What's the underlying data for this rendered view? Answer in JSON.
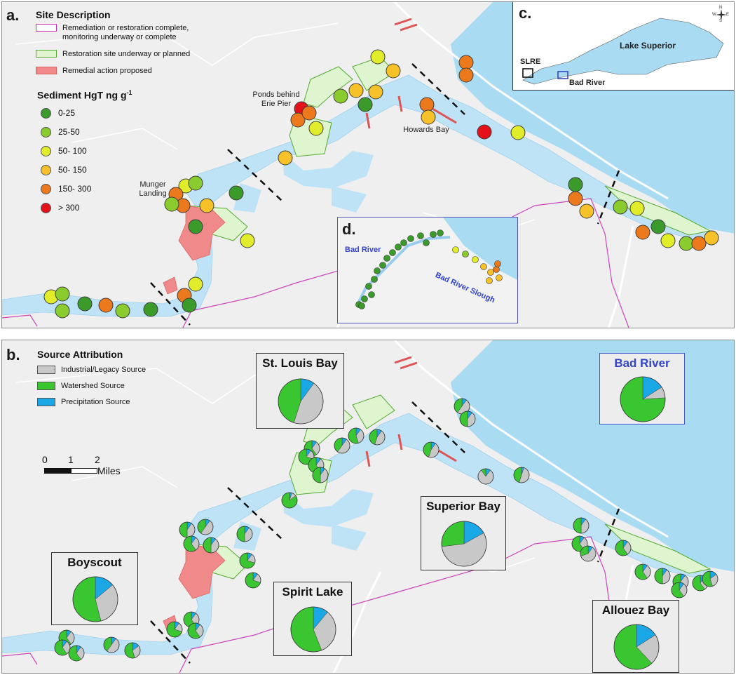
{
  "panel_a": {
    "label": "a.",
    "legend": {
      "title": "Site Description",
      "items": [
        {
          "label": "Remediation or restoration complete, monitoring underway or complete",
          "color": "#cc33aa",
          "fill": "#ffffff"
        },
        {
          "label": "Restoration site underway or planned",
          "color": "#55aa33",
          "fill": "#dff5cf"
        },
        {
          "label": "Remedial action proposed",
          "color": "#e06060",
          "fill": "#f08a8a"
        }
      ],
      "sediment_title": "Sediment HgT ng g",
      "sediment_superscript": "-1",
      "classes": [
        {
          "label": "0-25",
          "color": "#3a9a2a"
        },
        {
          "label": "25-50",
          "color": "#8acb2e"
        },
        {
          "label": "50- 100",
          "color": "#e1ec2a"
        },
        {
          "label": "50- 150",
          "color": "#f7c12a"
        },
        {
          "label": "150- 300",
          "color": "#ec7a1c"
        },
        {
          "label": "> 300",
          "color": "#e4111a"
        }
      ]
    },
    "place_labels": {
      "ponds": "Ponds behind Erie Pier",
      "howards": "Howards Bay",
      "munger": "Munger Landing"
    },
    "inset_c": {
      "label": "c.",
      "lake": "Lake Superior",
      "slre": "SLRE",
      "bad_river": "Bad River",
      "compass": {
        "n": "N",
        "s": "S",
        "e": "E",
        "w": "W"
      }
    },
    "inset_d": {
      "label": "d.",
      "bad_river": "Bad River",
      "slough": "Bad River Slough"
    }
  },
  "panel_b": {
    "label": "b.",
    "legend": {
      "title": "Source Attribution",
      "items": [
        {
          "label": "Industrial/Legacy Source",
          "color": "#c8c8c8"
        },
        {
          "label": "Watershed Source",
          "color": "#39c630"
        },
        {
          "label": "Precipitation Source",
          "color": "#1aa7e6"
        }
      ]
    },
    "scale": {
      "ticks": [
        "0",
        "1",
        "2"
      ],
      "unit": "Miles"
    },
    "site_boxes": [
      {
        "name": "St. Louis Bay",
        "industrial": 0.45,
        "watershed": 0.45,
        "precipitation": 0.1
      },
      {
        "name": "Bad River",
        "industrial": 0.08,
        "watershed": 0.76,
        "precipitation": 0.16
      },
      {
        "name": "Boyscout",
        "industrial": 0.32,
        "watershed": 0.54,
        "precipitation": 0.14
      },
      {
        "name": "Superior Bay",
        "industrial": 0.56,
        "watershed": 0.27,
        "precipitation": 0.17
      },
      {
        "name": "Spirit Lake",
        "industrial": 0.33,
        "watershed": 0.56,
        "precipitation": 0.11
      },
      {
        "name": "Allouez Bay",
        "industrial": 0.22,
        "watershed": 0.62,
        "precipitation": 0.16
      }
    ]
  },
  "colors": {
    "water": "#bfe3f6",
    "lake": "#a9dcf3",
    "land": "#efefef",
    "road": "#ffffff",
    "boundary": "#cc44bb",
    "restoration_fill": "#dff5cf",
    "restoration_stroke": "#55aa33",
    "remedial_fill": "#f08a8a",
    "remediation_stroke": "#cc33aa",
    "bad_river_title": "#3344cc"
  }
}
